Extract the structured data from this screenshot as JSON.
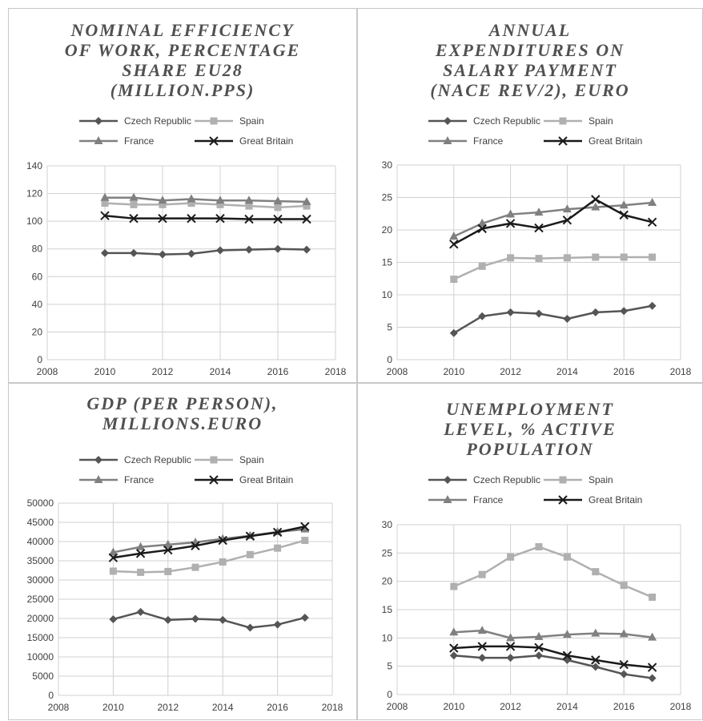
{
  "legend": [
    "Czech Republic",
    "Spain",
    "France",
    "Great Britain"
  ],
  "colors": {
    "Czech Republic": "#555555",
    "Spain": "#b0b0b0",
    "France": "#808080",
    "Great Britain": "#1a1a1a"
  },
  "markers": {
    "Czech Republic": "diamond",
    "Spain": "square",
    "France": "triangle",
    "Great Britain": "x"
  },
  "chart_data": [
    {
      "type": "line",
      "title": "NOMINAL EFFICIENCY OF WORK, PERCENTAGE SHARE EU28 (MILLION.PPS)",
      "title_lines": [
        "NOMINAL EFFICIENCY",
        "OF WORK, PERCENTAGE",
        "SHARE EU28",
        "(MILLION.PPS)"
      ],
      "xlim": [
        2008,
        2018
      ],
      "xticks": [
        2008,
        2010,
        2012,
        2014,
        2016,
        2018
      ],
      "ylim": [
        0,
        140
      ],
      "yticks": [
        0,
        20,
        40,
        60,
        80,
        100,
        120,
        140
      ],
      "x": [
        2010,
        2011,
        2012,
        2013,
        2014,
        2015,
        2016,
        2017
      ],
      "series": [
        {
          "name": "Czech Republic",
          "values": [
            77,
            77,
            76,
            76.5,
            79,
            79.5,
            80,
            79.5
          ]
        },
        {
          "name": "Spain",
          "values": [
            113,
            112,
            112,
            113,
            112,
            111,
            110,
            111
          ]
        },
        {
          "name": "France",
          "values": [
            117,
            117,
            115,
            116,
            115,
            115,
            114.5,
            114
          ]
        },
        {
          "name": "Great Britain",
          "values": [
            104,
            102,
            102,
            102,
            102,
            101.5,
            101.5,
            101.5
          ]
        }
      ],
      "grid": true,
      "legend_position": "top"
    },
    {
      "type": "line",
      "title": "ANNUAL EXPENDITURES ON SALARY PAYMENT (NACE REV/2), EURO",
      "title_lines": [
        "ANNUAL",
        "EXPENDITURES ON",
        "SALARY PAYMENT",
        "(NACE REV/2), EURO"
      ],
      "xlim": [
        2008,
        2018
      ],
      "xticks": [
        2008,
        2010,
        2012,
        2014,
        2016,
        2018
      ],
      "ylim": [
        0,
        30
      ],
      "yticks": [
        0,
        5,
        10,
        15,
        20,
        25,
        30
      ],
      "x": [
        2010,
        2011,
        2012,
        2013,
        2014,
        2015,
        2016,
        2017
      ],
      "series": [
        {
          "name": "Czech Republic",
          "values": [
            4.1,
            6.7,
            7.3,
            7.1,
            6.3,
            7.3,
            7.5,
            8.3
          ]
        },
        {
          "name": "Spain",
          "values": [
            12.4,
            14.4,
            15.7,
            15.6,
            15.7,
            15.8,
            15.8,
            15.8
          ]
        },
        {
          "name": "France",
          "values": [
            19,
            21,
            22.4,
            22.7,
            23.2,
            23.5,
            23.8,
            24.2
          ]
        },
        {
          "name": "Great Britain",
          "values": [
            17.8,
            20.2,
            21,
            20.3,
            21.5,
            24.7,
            22.3,
            21.2
          ]
        }
      ],
      "grid": true,
      "legend_position": "top"
    },
    {
      "type": "line",
      "title": "GDP (PER PERSON), MILLIONS.EURO",
      "title_lines": [
        "GDP (PER PERSON),",
        "MILLIONS.EURO"
      ],
      "xlim": [
        2008,
        2018
      ],
      "xticks": [
        2008,
        2010,
        2012,
        2014,
        2016,
        2018
      ],
      "ylim": [
        0,
        50000
      ],
      "yticks": [
        0,
        5000,
        10000,
        15000,
        20000,
        25000,
        30000,
        35000,
        40000,
        45000,
        50000
      ],
      "x": [
        2010,
        2011,
        2012,
        2013,
        2014,
        2015,
        2016,
        2017
      ],
      "series": [
        {
          "name": "Czech Republic",
          "values": [
            19800,
            21700,
            19600,
            19900,
            19600,
            17600,
            18400,
            20200
          ]
        },
        {
          "name": "Spain",
          "values": [
            32300,
            32000,
            32200,
            33300,
            34700,
            36600,
            38300,
            40300
          ]
        },
        {
          "name": "France",
          "values": [
            37200,
            38600,
            39200,
            39800,
            40700,
            41500,
            42500,
            43200
          ]
        },
        {
          "name": "Great Britain",
          "values": [
            35800,
            36900,
            37800,
            38900,
            40300,
            41400,
            42400,
            43900
          ]
        }
      ],
      "grid": true,
      "legend_position": "top"
    },
    {
      "type": "line",
      "title": "UNEMPLOYMENT LEVEL, % ACTIVE POPULATION",
      "title_lines": [
        "UNEMPLOYMENT",
        "LEVEL, % ACTIVE",
        "POPULATION"
      ],
      "xlim": [
        2008,
        2018
      ],
      "xticks": [
        2008,
        2010,
        2012,
        2014,
        2016,
        2018
      ],
      "ylim": [
        0,
        30
      ],
      "yticks": [
        0,
        5,
        10,
        15,
        20,
        25,
        30
      ],
      "x": [
        2010,
        2011,
        2012,
        2013,
        2014,
        2015,
        2016,
        2017
      ],
      "series": [
        {
          "name": "Czech Republic",
          "values": [
            6.9,
            6.5,
            6.5,
            6.9,
            6.1,
            4.9,
            3.6,
            2.9
          ]
        },
        {
          "name": "Spain",
          "values": [
            19.1,
            21.2,
            24.3,
            26.1,
            24.3,
            21.7,
            19.3,
            17.2
          ]
        },
        {
          "name": "France",
          "values": [
            11,
            11.3,
            10,
            10.2,
            10.6,
            10.8,
            10.7,
            10.1
          ]
        },
        {
          "name": "Great Britain",
          "values": [
            8.2,
            8.5,
            8.5,
            8.3,
            6.9,
            6.1,
            5.3,
            4.8
          ]
        }
      ],
      "grid": true,
      "legend_position": "top"
    }
  ]
}
